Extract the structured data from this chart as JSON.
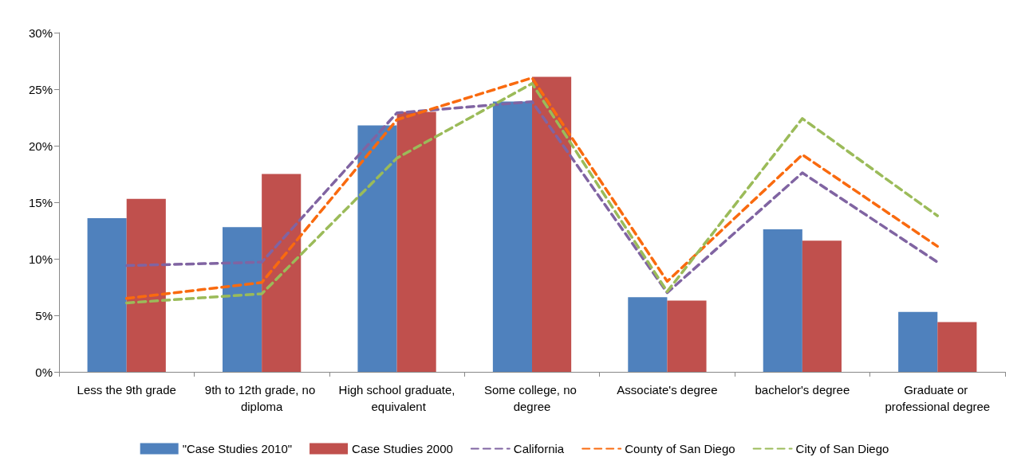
{
  "chart_data": {
    "type": "bar",
    "categories": [
      "Less the 9th grade",
      "9th to 12th grade, no diploma",
      "High school graduate, equivalent",
      "Some college, no degree",
      "Associate's degree",
      "bachelor's degree",
      "Graduate or professional degree"
    ],
    "series": [
      {
        "name": "\"Case Studies 2010\"",
        "color": "#4f81bd",
        "values": [
          13.6,
          12.8,
          21.8,
          23.9,
          6.6,
          12.6,
          5.3
        ]
      },
      {
        "name": "Case Studies 2000",
        "color": "#c0504d",
        "values": [
          15.3,
          17.5,
          23.0,
          26.1,
          6.3,
          11.6,
          4.4
        ]
      },
      {
        "name": "California",
        "type": "line",
        "color": "#8064a2",
        "line_style": "dashed",
        "values": [
          9.4,
          9.7,
          22.9,
          23.9,
          7.0,
          17.6,
          9.7
        ]
      },
      {
        "name": "County of San Diego",
        "type": "line",
        "color": "#f96a0f",
        "line_style": "dashed",
        "values": [
          6.5,
          7.9,
          22.3,
          26.0,
          8.0,
          19.2,
          11.1
        ]
      },
      {
        "name": "City of San Diego",
        "type": "line",
        "color": "#9bbb59",
        "line_style": "dashed",
        "values": [
          6.1,
          6.9,
          18.9,
          25.5,
          7.1,
          22.4,
          13.8
        ]
      }
    ],
    "ylim": [
      0,
      30
    ],
    "yticks": [
      {
        "value": 0,
        "label": "0%"
      },
      {
        "value": 5,
        "label": "5%"
      },
      {
        "value": 10,
        "label": "10%"
      },
      {
        "value": 15,
        "label": "15%"
      },
      {
        "value": 20,
        "label": "20%"
      },
      {
        "value": 25,
        "label": "25%"
      },
      {
        "value": 30,
        "label": "30%"
      }
    ],
    "grid": false,
    "legend": "bottom",
    "marker": "none"
  }
}
